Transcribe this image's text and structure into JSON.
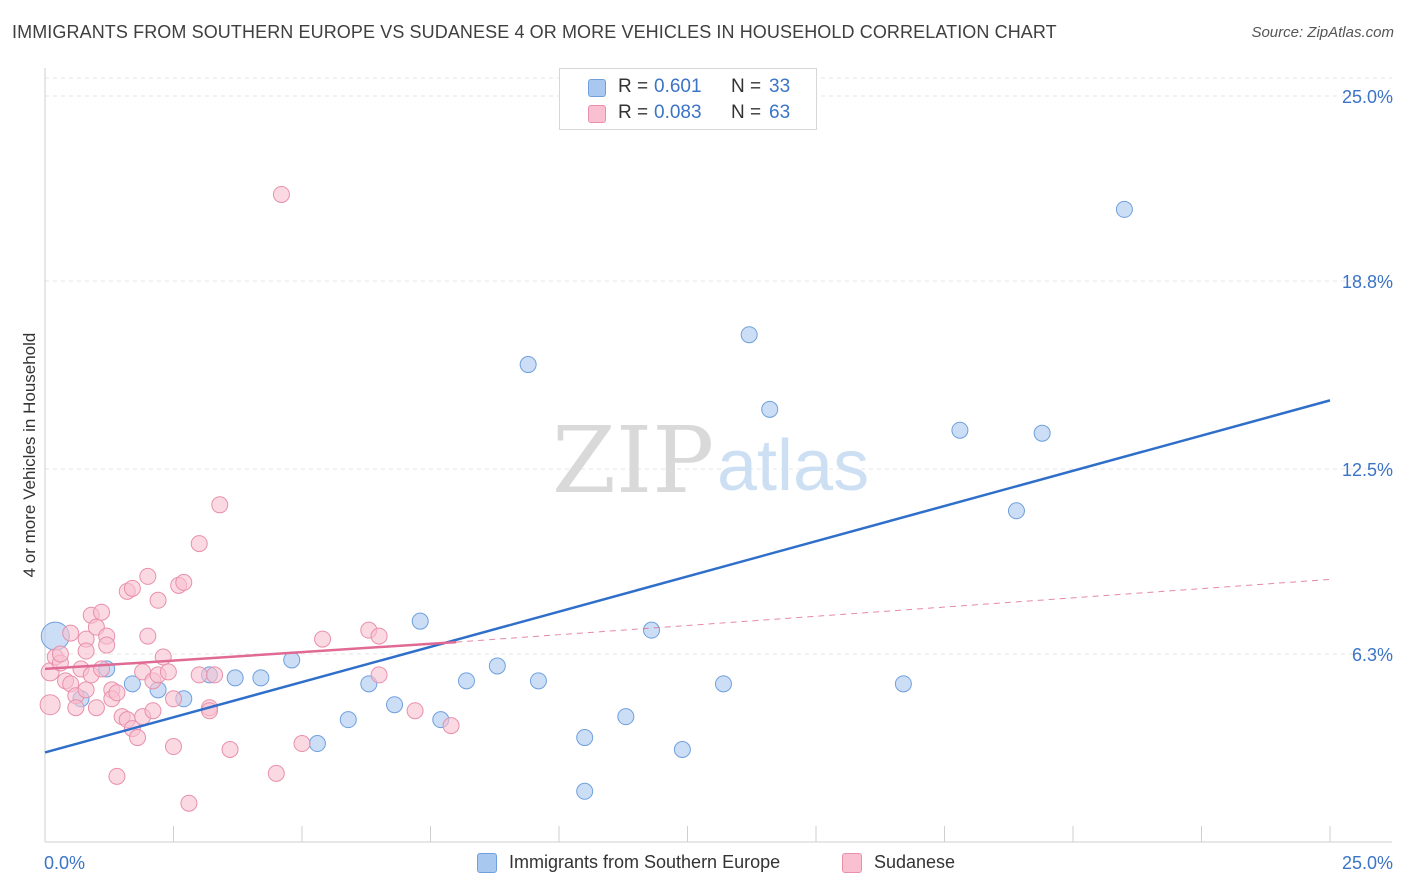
{
  "title": "IMMIGRANTS FROM SOUTHERN EUROPE VS SUDANESE 4 OR MORE VEHICLES IN HOUSEHOLD CORRELATION CHART",
  "source": "Source: ZipAtlas.com",
  "watermark": {
    "zip": "ZIP",
    "atlas": "atlas"
  },
  "legend": {
    "r_label": "R =",
    "n_label": "N =",
    "entries": [
      {
        "name": "Immigrants from Southern Europe",
        "r": "0.601",
        "n": "33",
        "color": "#a8c8f0",
        "stroke": "#6fa0dc"
      },
      {
        "name": "Sudanese",
        "r": "0.083",
        "n": "63",
        "color": "#f8c0d0",
        "stroke": "#e890ab"
      }
    ]
  },
  "chart_data": {
    "type": "scatter",
    "xlabel": "",
    "ylabel": "4 or more Vehicles in Household",
    "xlim": [
      0,
      25
    ],
    "ylim": [
      0,
      25
    ],
    "x_tick_labels": [
      "0.0%",
      "25.0%"
    ],
    "y_tick_labels": [
      "25.0%",
      "18.8%",
      "12.5%",
      "6.3%"
    ],
    "y_ticks": [
      25.0,
      18.8,
      12.5,
      6.3
    ],
    "grid": true,
    "series": [
      {
        "name": "Immigrants from Southern Europe",
        "color": "#a8c8f0",
        "stroke": "#6fa0dc",
        "trend": {
          "x": [
            0,
            25
          ],
          "y": [
            3.0,
            14.8
          ],
          "color": "#2f6fca"
        },
        "points": [
          {
            "x": 0.2,
            "y": 6.9,
            "r": 14
          },
          {
            "x": 0.7,
            "y": 4.8,
            "r": 8
          },
          {
            "x": 1.2,
            "y": 5.8,
            "r": 8
          },
          {
            "x": 1.7,
            "y": 5.3,
            "r": 8
          },
          {
            "x": 2.2,
            "y": 5.1,
            "r": 8
          },
          {
            "x": 2.7,
            "y": 4.8,
            "r": 8
          },
          {
            "x": 3.2,
            "y": 5.6,
            "r": 8
          },
          {
            "x": 3.7,
            "y": 5.5,
            "r": 8
          },
          {
            "x": 4.2,
            "y": 5.5,
            "r": 8
          },
          {
            "x": 4.8,
            "y": 6.1,
            "r": 8
          },
          {
            "x": 5.3,
            "y": 3.3,
            "r": 8
          },
          {
            "x": 5.9,
            "y": 4.1,
            "r": 8
          },
          {
            "x": 6.3,
            "y": 5.3,
            "r": 8
          },
          {
            "x": 6.8,
            "y": 4.6,
            "r": 8
          },
          {
            "x": 7.3,
            "y": 7.4,
            "r": 8
          },
          {
            "x": 7.7,
            "y": 4.1,
            "r": 8
          },
          {
            "x": 8.2,
            "y": 5.4,
            "r": 8
          },
          {
            "x": 8.8,
            "y": 5.9,
            "r": 8
          },
          {
            "x": 9.4,
            "y": 16.0,
            "r": 8
          },
          {
            "x": 9.6,
            "y": 5.4,
            "r": 8
          },
          {
            "x": 10.5,
            "y": 3.5,
            "r": 8
          },
          {
            "x": 10.5,
            "y": 1.7,
            "r": 8
          },
          {
            "x": 11.3,
            "y": 4.2,
            "r": 8
          },
          {
            "x": 11.8,
            "y": 7.1,
            "r": 8
          },
          {
            "x": 12.4,
            "y": 3.1,
            "r": 8
          },
          {
            "x": 13.2,
            "y": 5.3,
            "r": 8
          },
          {
            "x": 13.7,
            "y": 17.0,
            "r": 8
          },
          {
            "x": 14.1,
            "y": 14.5,
            "r": 8
          },
          {
            "x": 16.7,
            "y": 5.3,
            "r": 8
          },
          {
            "x": 17.8,
            "y": 13.8,
            "r": 8
          },
          {
            "x": 18.9,
            "y": 11.1,
            "r": 8
          },
          {
            "x": 19.4,
            "y": 13.7,
            "r": 8
          },
          {
            "x": 21.0,
            "y": 21.2,
            "r": 8
          }
        ]
      },
      {
        "name": "Sudanese",
        "color": "#f8c0d0",
        "stroke": "#e890ab",
        "trend": {
          "x": [
            0,
            8.0,
            25
          ],
          "y": [
            5.8,
            6.7,
            8.8
          ],
          "color": "#e06a94",
          "solid_until": 8.0
        },
        "points": [
          {
            "x": 0.1,
            "y": 4.6,
            "r": 10
          },
          {
            "x": 0.1,
            "y": 5.7,
            "r": 9
          },
          {
            "x": 0.2,
            "y": 6.2,
            "r": 8
          },
          {
            "x": 0.3,
            "y": 6.0,
            "r": 8
          },
          {
            "x": 0.4,
            "y": 5.4,
            "r": 8
          },
          {
            "x": 0.5,
            "y": 5.3,
            "r": 8
          },
          {
            "x": 0.5,
            "y": 7.0,
            "r": 8
          },
          {
            "x": 0.6,
            "y": 4.9,
            "r": 8
          },
          {
            "x": 0.6,
            "y": 4.5,
            "r": 8
          },
          {
            "x": 0.7,
            "y": 5.8,
            "r": 8
          },
          {
            "x": 0.8,
            "y": 6.8,
            "r": 8
          },
          {
            "x": 0.8,
            "y": 5.1,
            "r": 8
          },
          {
            "x": 0.8,
            "y": 6.4,
            "r": 8
          },
          {
            "x": 0.9,
            "y": 7.6,
            "r": 8
          },
          {
            "x": 0.9,
            "y": 5.6,
            "r": 8
          },
          {
            "x": 1.0,
            "y": 7.2,
            "r": 8
          },
          {
            "x": 1.0,
            "y": 4.5,
            "r": 8
          },
          {
            "x": 1.1,
            "y": 7.7,
            "r": 8
          },
          {
            "x": 1.2,
            "y": 6.9,
            "r": 8
          },
          {
            "x": 1.2,
            "y": 6.6,
            "r": 8
          },
          {
            "x": 1.3,
            "y": 5.1,
            "r": 8
          },
          {
            "x": 1.3,
            "y": 4.8,
            "r": 8
          },
          {
            "x": 1.4,
            "y": 5.0,
            "r": 8
          },
          {
            "x": 1.4,
            "y": 2.2,
            "r": 8
          },
          {
            "x": 1.5,
            "y": 4.2,
            "r": 8
          },
          {
            "x": 1.6,
            "y": 4.1,
            "r": 8
          },
          {
            "x": 1.6,
            "y": 8.4,
            "r": 8
          },
          {
            "x": 1.7,
            "y": 8.5,
            "r": 8
          },
          {
            "x": 1.7,
            "y": 3.8,
            "r": 8
          },
          {
            "x": 1.8,
            "y": 3.5,
            "r": 8
          },
          {
            "x": 1.9,
            "y": 5.7,
            "r": 8
          },
          {
            "x": 1.9,
            "y": 4.2,
            "r": 8
          },
          {
            "x": 2.0,
            "y": 8.9,
            "r": 8
          },
          {
            "x": 2.0,
            "y": 6.9,
            "r": 8
          },
          {
            "x": 2.1,
            "y": 4.4,
            "r": 8
          },
          {
            "x": 2.1,
            "y": 5.4,
            "r": 8
          },
          {
            "x": 2.2,
            "y": 5.6,
            "r": 8
          },
          {
            "x": 2.2,
            "y": 8.1,
            "r": 8
          },
          {
            "x": 2.4,
            "y": 5.7,
            "r": 8
          },
          {
            "x": 2.5,
            "y": 4.8,
            "r": 8
          },
          {
            "x": 2.5,
            "y": 3.2,
            "r": 8
          },
          {
            "x": 2.6,
            "y": 8.6,
            "r": 8
          },
          {
            "x": 2.7,
            "y": 8.7,
            "r": 8
          },
          {
            "x": 2.8,
            "y": 1.3,
            "r": 8
          },
          {
            "x": 3.0,
            "y": 10.0,
            "r": 8
          },
          {
            "x": 3.0,
            "y": 5.6,
            "r": 8
          },
          {
            "x": 3.2,
            "y": 4.5,
            "r": 8
          },
          {
            "x": 3.2,
            "y": 4.4,
            "r": 8
          },
          {
            "x": 3.4,
            "y": 11.3,
            "r": 8
          },
          {
            "x": 3.6,
            "y": 3.1,
            "r": 8
          },
          {
            "x": 3.3,
            "y": 5.6,
            "r": 8
          },
          {
            "x": 4.6,
            "y": 21.7,
            "r": 8
          },
          {
            "x": 4.5,
            "y": 2.3,
            "r": 8
          },
          {
            "x": 5.0,
            "y": 3.3,
            "r": 8
          },
          {
            "x": 5.4,
            "y": 6.8,
            "r": 8
          },
          {
            "x": 6.3,
            "y": 7.1,
            "r": 8
          },
          {
            "x": 6.5,
            "y": 6.9,
            "r": 8
          },
          {
            "x": 6.5,
            "y": 5.6,
            "r": 8
          },
          {
            "x": 7.2,
            "y": 4.4,
            "r": 8
          },
          {
            "x": 7.9,
            "y": 3.9,
            "r": 8
          },
          {
            "x": 1.1,
            "y": 5.8,
            "r": 8
          },
          {
            "x": 0.3,
            "y": 6.3,
            "r": 8
          },
          {
            "x": 2.3,
            "y": 6.2,
            "r": 8
          }
        ]
      }
    ]
  }
}
